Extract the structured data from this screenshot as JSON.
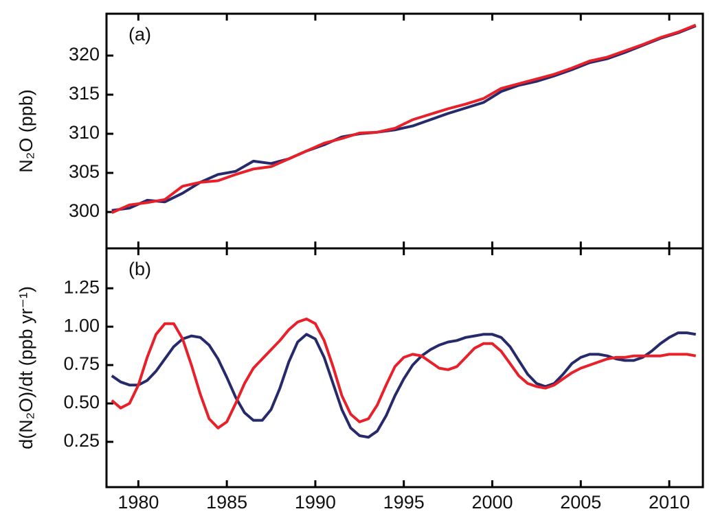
{
  "chart_data": [
    {
      "type": "line",
      "annotation": "(a)",
      "ylabel": "N₂O (ppb)",
      "x": [
        1978.5,
        1979.5,
        1980.5,
        1981.5,
        1982.5,
        1983.5,
        1984.5,
        1985.5,
        1986.5,
        1987.5,
        1988.5,
        1989.5,
        1990.5,
        1991.5,
        1992.5,
        1993.5,
        1994.5,
        1995.5,
        1996.5,
        1997.5,
        1998.5,
        1999.5,
        2000.5,
        2001.5,
        2002.5,
        2003.5,
        2004.5,
        2005.5,
        2006.5,
        2007.5,
        2008.5,
        2009.5,
        2010.5,
        2011.5
      ],
      "series": [
        {
          "color": "#262a6b",
          "values": [
            300.2,
            300.5,
            301.5,
            301.3,
            302.4,
            303.8,
            304.8,
            305.2,
            306.5,
            306.2,
            306.8,
            307.8,
            308.6,
            309.6,
            310.0,
            310.2,
            310.5,
            311.0,
            311.8,
            312.6,
            313.3,
            314.0,
            315.4,
            316.2,
            316.7,
            317.4,
            318.2,
            319.1,
            319.6,
            320.4,
            321.3,
            322.2,
            322.9,
            323.8
          ]
        },
        {
          "color": "#e8202a",
          "values": [
            299.9,
            300.9,
            301.2,
            301.6,
            303.3,
            303.8,
            304.0,
            304.8,
            305.5,
            305.8,
            306.8,
            307.8,
            308.8,
            309.4,
            310.1,
            310.2,
            310.7,
            311.8,
            312.5,
            313.2,
            313.8,
            314.5,
            315.8,
            316.4,
            317.0,
            317.6,
            318.4,
            319.3,
            319.8,
            320.6,
            321.4,
            322.3,
            323.0,
            323.9
          ]
        }
      ],
      "xlim": [
        1978.2,
        2011.9
      ],
      "xticks": [
        1980,
        1985,
        1990,
        1995,
        2000,
        2005,
        2010
      ],
      "ylim": [
        295.35,
        325.35
      ],
      "yticks": [
        300,
        305,
        310,
        315,
        320
      ]
    },
    {
      "type": "line",
      "annotation": "(b)",
      "ylabel": "d(N₂O)/dt (ppb yr⁻¹)",
      "x": [
        1978.5,
        1979,
        1979.5,
        1980,
        1980.5,
        1981,
        1981.5,
        1982,
        1982.5,
        1983,
        1983.5,
        1984,
        1984.5,
        1985,
        1985.5,
        1986,
        1986.5,
        1987,
        1987.5,
        1988,
        1988.5,
        1989,
        1989.5,
        1990,
        1990.5,
        1991,
        1991.5,
        1992,
        1992.5,
        1993,
        1993.5,
        1994,
        1994.5,
        1995,
        1995.5,
        1996,
        1996.5,
        1997,
        1997.5,
        1998,
        1998.5,
        1999,
        1999.5,
        2000,
        2000.5,
        2001,
        2001.5,
        2002,
        2002.5,
        2003,
        2003.5,
        2004,
        2004.5,
        2005,
        2005.5,
        2006,
        2006.5,
        2007,
        2007.5,
        2008,
        2008.5,
        2009,
        2009.5,
        2010,
        2010.5,
        2011,
        2011.5
      ],
      "series": [
        {
          "color": "#262a6b",
          "values": [
            0.68,
            0.64,
            0.62,
            0.62,
            0.65,
            0.71,
            0.79,
            0.87,
            0.92,
            0.94,
            0.93,
            0.88,
            0.79,
            0.67,
            0.54,
            0.44,
            0.39,
            0.39,
            0.46,
            0.6,
            0.77,
            0.9,
            0.95,
            0.92,
            0.8,
            0.63,
            0.46,
            0.34,
            0.29,
            0.28,
            0.32,
            0.42,
            0.55,
            0.66,
            0.75,
            0.81,
            0.85,
            0.88,
            0.9,
            0.91,
            0.93,
            0.94,
            0.95,
            0.95,
            0.93,
            0.87,
            0.78,
            0.69,
            0.63,
            0.61,
            0.63,
            0.69,
            0.76,
            0.8,
            0.82,
            0.82,
            0.81,
            0.79,
            0.78,
            0.78,
            0.8,
            0.84,
            0.89,
            0.93,
            0.96,
            0.96,
            0.95
          ]
        },
        {
          "color": "#e8202a",
          "values": [
            0.52,
            0.47,
            0.5,
            0.62,
            0.8,
            0.95,
            1.02,
            1.02,
            0.92,
            0.75,
            0.56,
            0.4,
            0.34,
            0.38,
            0.5,
            0.63,
            0.73,
            0.79,
            0.85,
            0.91,
            0.98,
            1.03,
            1.05,
            1.02,
            0.91,
            0.74,
            0.55,
            0.43,
            0.38,
            0.4,
            0.49,
            0.62,
            0.74,
            0.8,
            0.82,
            0.81,
            0.77,
            0.73,
            0.72,
            0.74,
            0.8,
            0.86,
            0.89,
            0.89,
            0.84,
            0.76,
            0.68,
            0.63,
            0.61,
            0.6,
            0.62,
            0.66,
            0.7,
            0.73,
            0.75,
            0.77,
            0.79,
            0.8,
            0.8,
            0.81,
            0.81,
            0.81,
            0.81,
            0.82,
            0.82,
            0.82,
            0.81
          ]
        }
      ],
      "xlim": [
        1978.2,
        2011.9
      ],
      "xticks": [
        1980,
        1985,
        1990,
        1995,
        2000,
        2005,
        2010
      ],
      "ylim": [
        -0.045,
        1.51
      ],
      "yticks": [
        0.25,
        {
          "value": 0.5,
          "label": "0.50"
        },
        {
          "value": 0.75,
          "label": "0.75"
        },
        {
          "value": 1,
          "label": "1.00"
        },
        1.25
      ]
    }
  ]
}
